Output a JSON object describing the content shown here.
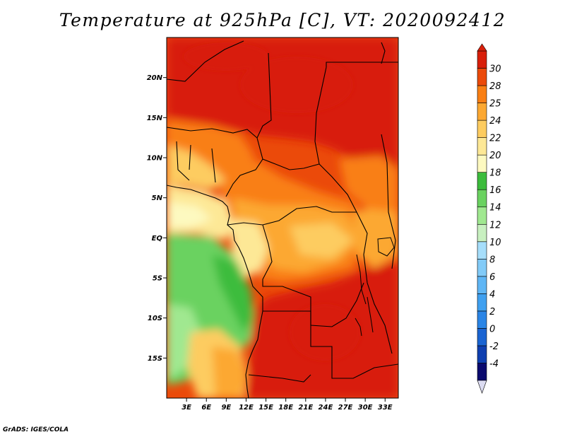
{
  "title": "Temperature at 925hPa [C], VT: 2020092412",
  "credit": "GrADS: IGES/COLA",
  "map": {
    "lat_range": [
      -20,
      25
    ],
    "lon_range": [
      0,
      35
    ],
    "lat_ticks": [
      {
        "lat": 20,
        "label": "20N"
      },
      {
        "lat": 15,
        "label": "15N"
      },
      {
        "lat": 10,
        "label": "10N"
      },
      {
        "lat": 5,
        "label": "5N"
      },
      {
        "lat": 0,
        "label": "EQ"
      },
      {
        "lat": -5,
        "label": "5S"
      },
      {
        "lat": -10,
        "label": "10S"
      },
      {
        "lat": -15,
        "label": "15S"
      }
    ],
    "lon_ticks": [
      {
        "lon": 3,
        "label": "3E"
      },
      {
        "lon": 6,
        "label": "6E"
      },
      {
        "lon": 9,
        "label": "9E"
      },
      {
        "lon": 12,
        "label": "12E"
      },
      {
        "lon": 15,
        "label": "15E"
      },
      {
        "lon": 18,
        "label": "18E"
      },
      {
        "lon": 21,
        "label": "21E"
      },
      {
        "lon": 24,
        "label": "24E"
      },
      {
        "lon": 27,
        "label": "27E"
      },
      {
        "lon": 30,
        "label": "30E"
      },
      {
        "lon": 33,
        "label": "33E"
      }
    ]
  },
  "colorbar": {
    "levels": [
      "-4",
      "-2",
      "0",
      "2",
      "4",
      "6",
      "8",
      "10",
      "12",
      "14",
      "16",
      "18",
      "20",
      "22",
      "24",
      "25",
      "28",
      "30"
    ],
    "colors": [
      "#0a0a6e",
      "#0f3fb0",
      "#1a64d2",
      "#2a85e6",
      "#3fa0f0",
      "#5fb6f5",
      "#82cbf8",
      "#a6defb",
      "#c8f0c0",
      "#a0e890",
      "#6ad260",
      "#3cbc3c",
      "#fdf9c0",
      "#fde896",
      "#fdcc60",
      "#fca832",
      "#f97f14",
      "#eb4a0a",
      "#d81f0a"
    ],
    "low_color": "#dcdcf2",
    "high_color": "#d81f0a"
  },
  "chart_data": {
    "type": "heatmap",
    "title": "Temperature at 925hPa [C], VT: 2020092412",
    "variable": "Temperature at 925hPa",
    "units": "C",
    "valid_time": "2020092412",
    "lat_range": [
      -20,
      25
    ],
    "lon_range": [
      0,
      35
    ],
    "contour_levels": [
      -4,
      -2,
      0,
      2,
      4,
      6,
      8,
      10,
      12,
      14,
      16,
      18,
      20,
      22,
      24,
      25,
      28,
      30
    ],
    "approx_regions": [
      {
        "region": "Sahel / northern belt (12N-25N)",
        "temperature": ">28"
      },
      {
        "region": "Sudan / South Sudan interior",
        "temperature": ">28"
      },
      {
        "region": "Southern Angola / Zambia interior (10S-20S, 14E-30E)",
        "temperature": ">28"
      },
      {
        "region": "Central Africa / Congo basin (10N-10S, 14E-28E)",
        "temperature": "22-28"
      },
      {
        "region": "Gulf of Guinea coast (1N-6N, 0-10E)",
        "temperature": "18-22"
      },
      {
        "region": "South Atlantic off Angola (0-20S, 0-12E)",
        "temperature": "12-18"
      },
      {
        "region": "Angolan highlands / Namib coast (12S-20S)",
        "temperature": "20-25"
      },
      {
        "region": "East Africa lakes / Ethiopian highlands",
        "temperature": "24-28"
      }
    ]
  }
}
